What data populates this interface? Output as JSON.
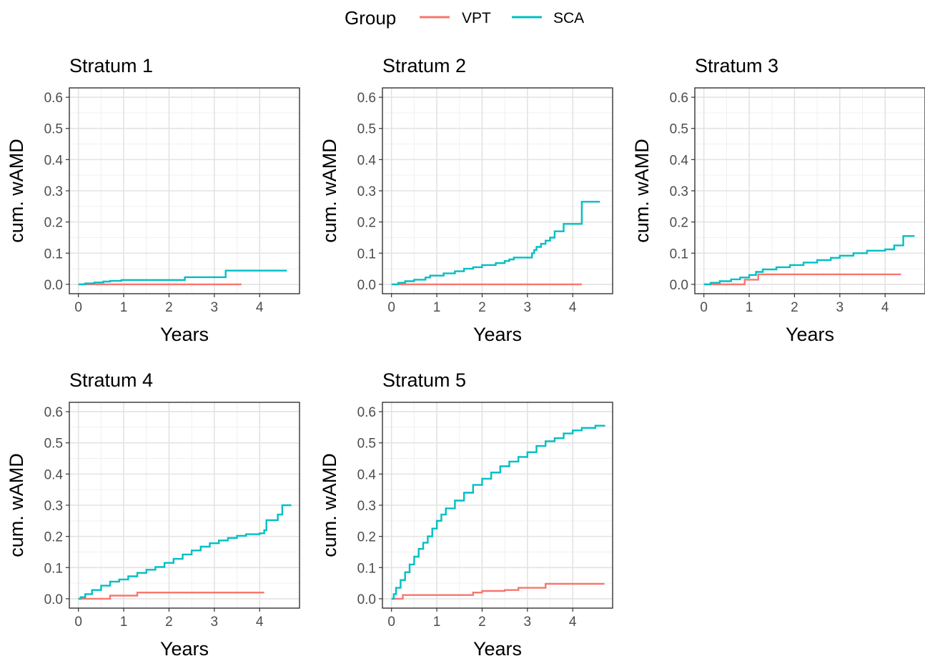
{
  "legend": {
    "title": "Group",
    "entries": [
      {
        "label": "VPT",
        "color": "#F8766D"
      },
      {
        "label": "SCA",
        "color": "#00BFC4"
      }
    ]
  },
  "chart_data": [
    {
      "type": "line",
      "step": true,
      "title": "Stratum 1",
      "xlabel": "Years",
      "ylabel": "cum. wAMD",
      "xlim": [
        -0.2,
        4.88
      ],
      "ylim": [
        -0.03,
        0.63
      ],
      "x_ticks": [
        0,
        1,
        2,
        3,
        4
      ],
      "y_ticks": [
        0.0,
        0.1,
        0.2,
        0.3,
        0.4,
        0.5,
        0.6
      ],
      "grid": true,
      "series": [
        {
          "name": "VPT",
          "x": [
            0,
            3.6
          ],
          "y": [
            0,
            0
          ]
        },
        {
          "name": "SCA",
          "x": [
            0,
            0.15,
            0.35,
            0.55,
            0.7,
            0.95,
            2.35,
            3.25,
            4.6
          ],
          "y": [
            0,
            0.003,
            0.006,
            0.009,
            0.011,
            0.014,
            0.023,
            0.044,
            0.044
          ]
        }
      ]
    },
    {
      "type": "line",
      "step": true,
      "title": "Stratum 2",
      "xlabel": "Years",
      "ylabel": "cum. wAMD",
      "xlim": [
        -0.2,
        4.88
      ],
      "ylim": [
        -0.03,
        0.63
      ],
      "x_ticks": [
        0,
        1,
        2,
        3,
        4
      ],
      "y_ticks": [
        0.0,
        0.1,
        0.2,
        0.3,
        0.4,
        0.5,
        0.6
      ],
      "grid": true,
      "series": [
        {
          "name": "VPT",
          "x": [
            0,
            4.2
          ],
          "y": [
            0,
            0
          ]
        },
        {
          "name": "SCA",
          "x": [
            0,
            0.15,
            0.3,
            0.5,
            0.75,
            0.85,
            1.15,
            1.4,
            1.6,
            1.8,
            2.0,
            2.3,
            2.5,
            2.6,
            2.7,
            3.1,
            3.15,
            3.2,
            3.3,
            3.4,
            3.5,
            3.6,
            3.8,
            4.2,
            4.6
          ],
          "y": [
            0,
            0.005,
            0.01,
            0.015,
            0.022,
            0.028,
            0.035,
            0.042,
            0.05,
            0.055,
            0.062,
            0.068,
            0.075,
            0.08,
            0.086,
            0.1,
            0.11,
            0.12,
            0.13,
            0.14,
            0.15,
            0.17,
            0.194,
            0.265,
            0.265
          ]
        }
      ]
    },
    {
      "type": "line",
      "step": true,
      "title": "Stratum 3",
      "xlabel": "Years",
      "ylabel": "cum. wAMD",
      "xlim": [
        -0.2,
        4.88
      ],
      "ylim": [
        -0.03,
        0.63
      ],
      "x_ticks": [
        0,
        1,
        2,
        3,
        4
      ],
      "y_ticks": [
        0.0,
        0.1,
        0.2,
        0.3,
        0.4,
        0.5,
        0.6
      ],
      "grid": true,
      "series": [
        {
          "name": "VPT",
          "x": [
            0,
            0.9,
            1.2,
            4.35
          ],
          "y": [
            0,
            0.015,
            0.032,
            0.032
          ]
        },
        {
          "name": "SCA",
          "x": [
            0,
            0.15,
            0.35,
            0.6,
            0.8,
            1.0,
            1.15,
            1.3,
            1.6,
            1.9,
            2.2,
            2.5,
            2.8,
            3.0,
            3.3,
            3.6,
            4.0,
            4.2,
            4.4,
            4.65
          ],
          "y": [
            0,
            0.005,
            0.01,
            0.016,
            0.022,
            0.03,
            0.04,
            0.048,
            0.055,
            0.062,
            0.07,
            0.078,
            0.085,
            0.092,
            0.1,
            0.108,
            0.112,
            0.125,
            0.155,
            0.155
          ]
        }
      ]
    },
    {
      "type": "line",
      "step": true,
      "title": "Stratum 4",
      "xlabel": "Years",
      "ylabel": "cum. wAMD",
      "xlim": [
        -0.2,
        4.88
      ],
      "ylim": [
        -0.03,
        0.63
      ],
      "x_ticks": [
        0,
        1,
        2,
        3,
        4
      ],
      "y_ticks": [
        0.0,
        0.1,
        0.2,
        0.3,
        0.4,
        0.5,
        0.6
      ],
      "grid": true,
      "series": [
        {
          "name": "VPT",
          "x": [
            0,
            0.7,
            1.3,
            4.1
          ],
          "y": [
            0,
            0.01,
            0.02,
            0.02
          ]
        },
        {
          "name": "SCA",
          "x": [
            0,
            0.05,
            0.15,
            0.3,
            0.5,
            0.7,
            0.9,
            1.1,
            1.3,
            1.5,
            1.7,
            1.9,
            2.1,
            2.3,
            2.5,
            2.7,
            2.9,
            3.1,
            3.3,
            3.5,
            3.7,
            4.0,
            4.1,
            4.15,
            4.4,
            4.5,
            4.6,
            4.7
          ],
          "y": [
            0,
            0.005,
            0.015,
            0.028,
            0.042,
            0.055,
            0.062,
            0.072,
            0.083,
            0.093,
            0.102,
            0.115,
            0.128,
            0.142,
            0.155,
            0.167,
            0.178,
            0.187,
            0.195,
            0.202,
            0.207,
            0.21,
            0.22,
            0.252,
            0.27,
            0.3,
            0.3,
            0.3
          ]
        }
      ]
    },
    {
      "type": "line",
      "step": true,
      "title": "Stratum 5",
      "xlabel": "Years",
      "ylabel": "cum. wAMD",
      "xlim": [
        -0.2,
        4.88
      ],
      "ylim": [
        -0.03,
        0.63
      ],
      "x_ticks": [
        0,
        1,
        2,
        3,
        4
      ],
      "y_ticks": [
        0.0,
        0.1,
        0.2,
        0.3,
        0.4,
        0.5,
        0.6
      ],
      "grid": true,
      "series": [
        {
          "name": "VPT",
          "x": [
            0,
            0.25,
            1.8,
            2.0,
            2.5,
            2.8,
            3.4,
            4.7
          ],
          "y": [
            0,
            0.012,
            0.02,
            0.025,
            0.028,
            0.035,
            0.048,
            0.048
          ]
        },
        {
          "name": "SCA",
          "x": [
            0,
            0.05,
            0.1,
            0.2,
            0.3,
            0.4,
            0.5,
            0.6,
            0.7,
            0.8,
            0.9,
            1.0,
            1.1,
            1.2,
            1.4,
            1.6,
            1.8,
            2.0,
            2.2,
            2.4,
            2.6,
            2.8,
            3.0,
            3.2,
            3.4,
            3.6,
            3.8,
            4.0,
            4.2,
            4.5,
            4.7
          ],
          "y": [
            0,
            0.015,
            0.035,
            0.06,
            0.085,
            0.11,
            0.135,
            0.16,
            0.18,
            0.2,
            0.225,
            0.25,
            0.27,
            0.29,
            0.315,
            0.34,
            0.365,
            0.385,
            0.405,
            0.425,
            0.44,
            0.455,
            0.47,
            0.49,
            0.505,
            0.515,
            0.53,
            0.54,
            0.548,
            0.555,
            0.557
          ]
        }
      ]
    }
  ]
}
